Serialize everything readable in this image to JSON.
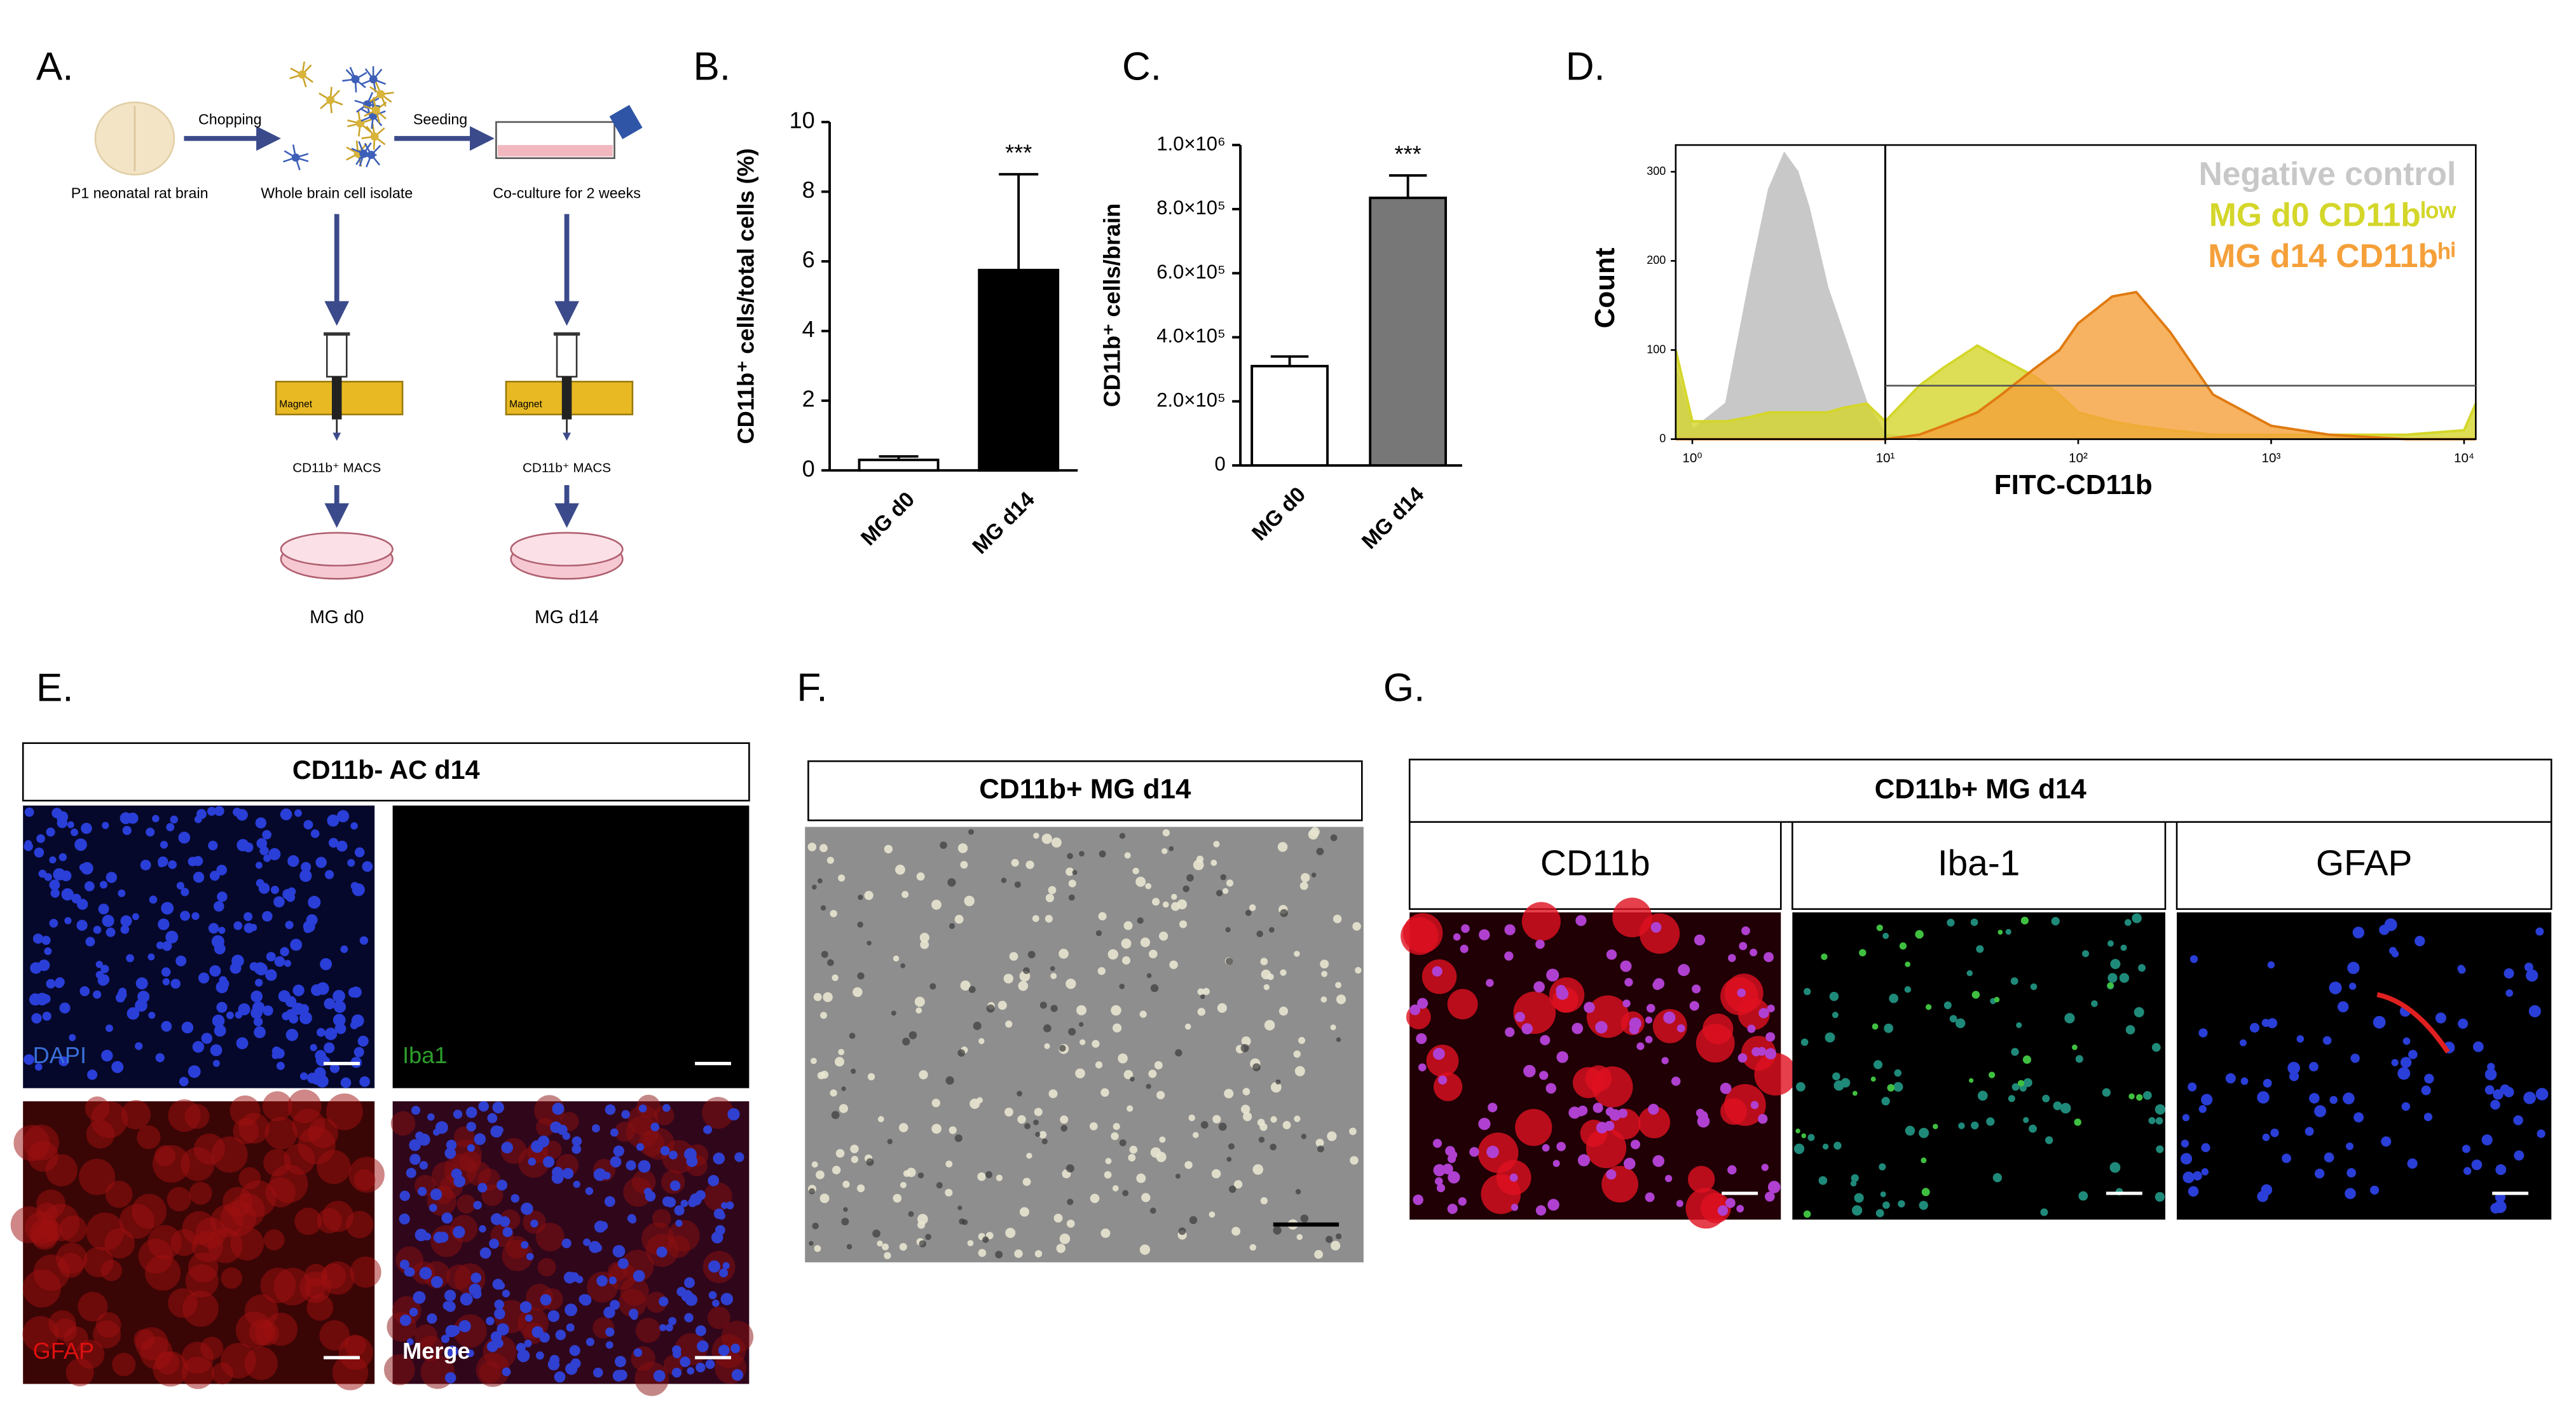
{
  "figure": {
    "A": {
      "label": "A.",
      "steps": {
        "chopping": "Chopping",
        "seeding": "Seeding"
      },
      "stages": [
        "P1 neonatal rat brain",
        "Whole brain cell isolate",
        "Co-culture for 2 weeks"
      ],
      "magnet": [
        "Magnet",
        "Magnet"
      ],
      "macs": [
        "CD11b⁺ MACS",
        "CD11b⁺ MACS"
      ],
      "outputs": [
        "MG d0",
        "MG d14"
      ]
    },
    "E": {
      "label": "E.",
      "header": "CD11b- AC d14",
      "channels": [
        "DAPI",
        "Iba1",
        "GFAP",
        "Merge"
      ]
    },
    "F": {
      "label": "F.",
      "header": "CD11b+ MG d14"
    },
    "G": {
      "label": "G.",
      "header": "CD11b+ MG d14",
      "channels": [
        "CD11b",
        "Iba-1",
        "GFAP"
      ]
    }
  },
  "chart_data": [
    {
      "type": "bar",
      "label": "B.",
      "ylabel": "CD11b⁺ cells/total cells (%)",
      "categories": [
        "MG d0",
        "MG d14"
      ],
      "values": [
        0.3,
        5.75
      ],
      "errors": [
        0.1,
        2.75
      ],
      "colors": [
        "#ffffff",
        "#000000"
      ],
      "annotation": {
        "text": "***",
        "category": "MG d14"
      },
      "ylim": [
        0,
        10
      ],
      "yticks": [
        0,
        2,
        4,
        6,
        8,
        10
      ]
    },
    {
      "type": "bar",
      "label": "C.",
      "ylabel": "CD11b⁺ cells/brain",
      "categories": [
        "MG d0",
        "MG d14"
      ],
      "values": [
        310000,
        835000
      ],
      "errors": [
        30000,
        70000
      ],
      "colors": [
        "#ffffff",
        "#777777"
      ],
      "annotation": {
        "text": "***",
        "category": "MG d14"
      },
      "ylim": [
        0,
        1000000
      ],
      "yticks": [
        0,
        {
          "value": 200000,
          "label": "2.0×10⁵"
        },
        {
          "value": 400000,
          "label": "4.0×10⁵"
        },
        {
          "value": 600000,
          "label": "6.0×10⁵"
        },
        {
          "value": 800000,
          "label": "8.0×10⁵"
        },
        {
          "value": 1000000,
          "label": "1.0×10⁶"
        }
      ]
    },
    {
      "type": "histogram-overlay",
      "label": "D.",
      "xlabel": "FITC-CD11b",
      "ylabel": "Count",
      "xscale": "log",
      "xlim": [
        0.82,
        11500
      ],
      "ylim": [
        0,
        330
      ],
      "xticks": [
        {
          "value": 1,
          "label": "10⁰"
        },
        {
          "value": 10,
          "label": "10¹"
        },
        {
          "value": 100,
          "label": "10²"
        },
        {
          "value": 1000,
          "label": "10³"
        },
        {
          "value": 10000,
          "label": "10⁴"
        }
      ],
      "yticks": [
        0,
        100,
        200,
        300
      ],
      "gate": {
        "x": 10,
        "y": 60
      },
      "x": [
        0.82,
        1,
        1.5,
        2,
        2.5,
        3,
        3.5,
        4,
        5,
        6,
        8,
        10,
        15,
        20,
        30,
        40,
        60,
        80,
        100,
        150,
        200,
        300,
        500,
        1000,
        2000,
        5000,
        10000,
        11500
      ],
      "series": [
        {
          "name": "Negative control",
          "color": "#c8c8c8",
          "values": [
            80,
            10,
            40,
            180,
            280,
            320,
            300,
            260,
            170,
            120,
            40,
            5,
            0,
            0,
            0,
            0,
            0,
            0,
            0,
            0,
            0,
            0,
            0,
            0,
            0,
            0,
            0,
            0
          ]
        },
        {
          "name": "MG d0 CD11bˡᵒʷ",
          "color": "#d4d62a",
          "values": [
            100,
            20,
            20,
            25,
            30,
            30,
            30,
            30,
            30,
            35,
            40,
            20,
            60,
            80,
            105,
            90,
            70,
            50,
            30,
            20,
            15,
            10,
            5,
            5,
            5,
            5,
            10,
            40
          ]
        },
        {
          "name": "MG d14 CD11bʰⁱ",
          "color": "#f5a03a",
          "values": [
            0,
            0,
            0,
            0,
            0,
            0,
            0,
            0,
            0,
            0,
            0,
            0,
            5,
            15,
            30,
            50,
            80,
            100,
            130,
            160,
            165,
            120,
            50,
            15,
            5,
            0,
            0,
            0
          ]
        }
      ]
    }
  ]
}
